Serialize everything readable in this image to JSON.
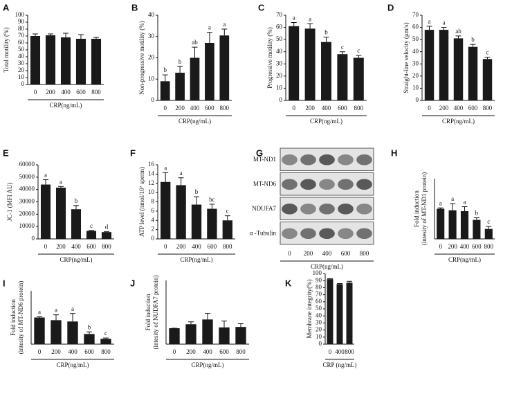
{
  "chart_data": [
    {
      "type": "bar",
      "panel": "A",
      "ylabel": [
        "Total motility (%)"
      ],
      "xlabel": "CRP(ng/mL)",
      "categories": [
        "0",
        "200",
        "400",
        "600",
        "800"
      ],
      "values": [
        70,
        71,
        68,
        66,
        66
      ],
      "errors": [
        3,
        2,
        6,
        6,
        2
      ],
      "color": "#1a1a1a",
      "ylim": [
        0,
        100
      ],
      "yticks": [
        0,
        10,
        20,
        30,
        40,
        50,
        60,
        70,
        80,
        90,
        100
      ]
    },
    {
      "type": "bar",
      "panel": "B",
      "ylabel": [
        "Non-progressive motility (%)"
      ],
      "xlabel": "CRP(ng/mL)",
      "categories": [
        "0",
        "200",
        "400",
        "600",
        "800"
      ],
      "values": [
        9,
        13,
        20,
        27,
        30.5
      ],
      "errors": [
        3,
        3,
        5,
        5,
        3
      ],
      "annotations": [
        "b",
        "b",
        "ab",
        "a",
        "a"
      ],
      "color": "#1a1a1a",
      "ylim": [
        0,
        40
      ],
      "yticks": [
        0,
        10,
        20,
        30,
        40
      ]
    },
    {
      "type": "bar",
      "panel": "C",
      "ylabel": [
        "Progressive motility (%)"
      ],
      "xlabel": "CRP(ng/mL)",
      "categories": [
        "0",
        "200",
        "400",
        "600",
        "800"
      ],
      "values": [
        61,
        59,
        48,
        38,
        35
      ],
      "errors": [
        3,
        4,
        4,
        2,
        2
      ],
      "annotations": [
        "a",
        "a",
        "b",
        "c",
        "c"
      ],
      "color": "#1a1a1a",
      "ylim": [
        0,
        70
      ],
      "yticks": [
        0,
        10,
        20,
        30,
        40,
        50,
        60,
        70
      ]
    },
    {
      "type": "bar",
      "panel": "D",
      "ylabel": [
        "Straight-line velocity (μm/s)"
      ],
      "xlabel": "CRP(ng/mL)",
      "categories": [
        "0",
        "200",
        "400",
        "600",
        "800"
      ],
      "values": [
        58,
        58,
        51,
        44,
        34
      ],
      "errors": [
        3,
        2,
        2,
        2,
        1.5
      ],
      "annotations": [
        "a",
        "a",
        "ab",
        "b",
        "c"
      ],
      "color": "#1a1a1a",
      "ylim": [
        0,
        70
      ],
      "yticks": [
        0,
        10,
        20,
        30,
        40,
        50,
        60,
        70
      ]
    },
    {
      "type": "bar",
      "panel": "E",
      "ylabel": [
        "JC-1 (MFI AU)"
      ],
      "xlabel": "CRP(ng/mL)",
      "categories": [
        "0",
        "200",
        "400",
        "600",
        "800"
      ],
      "values": [
        44000,
        41500,
        24000,
        6500,
        5500
      ],
      "errors": [
        4000,
        1000,
        3000,
        300,
        300
      ],
      "annotations": [
        "a",
        "a",
        "b",
        "c",
        "d"
      ],
      "color": "#1a1a1a",
      "ylim": [
        0,
        60000
      ],
      "yticks": [
        0,
        10000,
        20000,
        30000,
        40000,
        50000,
        60000
      ]
    },
    {
      "type": "bar",
      "panel": "F",
      "ylabel": [
        "ATP level (nmol/10⁷ sperm)"
      ],
      "xlabel": "CRP(ng/mL)",
      "categories": [
        "0",
        "200",
        "400",
        "600",
        "800"
      ],
      "values": [
        12.3,
        11.6,
        7.4,
        6.5,
        4.0
      ],
      "errors": [
        2,
        1.6,
        1.7,
        1,
        1
      ],
      "annotations": [
        "a",
        "a",
        "b",
        "bc",
        "c"
      ],
      "color": "#1a1a1a",
      "ylim": [
        0,
        16
      ],
      "yticks": [
        0,
        2,
        4,
        6,
        8,
        10,
        12,
        14,
        16
      ]
    },
    {
      "type": "blot",
      "panel": "G",
      "rows": [
        "MT-ND1",
        "MT-ND6",
        "NDUFA7",
        "α -Tubulin"
      ],
      "xlabel": "CRP(ng/mL)",
      "categories": [
        "0",
        "200",
        "400",
        "600",
        "800"
      ]
    },
    {
      "type": "bar",
      "panel": "H",
      "ylabel": [
        "Fold induction",
        "(intesity of MT-ND1 protein)"
      ],
      "xlabel": "CRP(ng/mL)",
      "categories": [
        "0",
        "200",
        "400",
        "600",
        "800"
      ],
      "values": [
        1.0,
        0.95,
        0.92,
        0.63,
        0.33
      ],
      "errors": [
        0.03,
        0.22,
        0.15,
        0.07,
        0.08
      ],
      "annotations": [
        "a",
        "a",
        "a",
        "b",
        "c"
      ],
      "color": "#1a1a1a",
      "ylim": [
        0,
        2
      ]
    },
    {
      "type": "bar",
      "panel": "I",
      "ylabel": [
        "Fold induction",
        "(intesity of MT-ND6 protein)"
      ],
      "xlabel": "CRP(ng/mL)",
      "categories": [
        "0",
        "200",
        "400",
        "600",
        "800"
      ],
      "values": [
        1.0,
        0.9,
        0.85,
        0.38,
        0.2
      ],
      "errors": [
        0.03,
        0.2,
        0.3,
        0.08,
        0.03
      ],
      "annotations": [
        "a",
        "a",
        "a",
        "b",
        "c"
      ],
      "color": "#1a1a1a",
      "ylim": [
        0,
        2
      ]
    },
    {
      "type": "bar",
      "panel": "J",
      "ylabel": [
        "Fold induction",
        "(intesity of NUDFA7 protein)"
      ],
      "xlabel": "CRP(ng/mL)",
      "categories": [
        "0",
        "200",
        "400",
        "600",
        "800"
      ],
      "values": [
        1.0,
        1.25,
        1.55,
        1.05,
        1.08
      ],
      "errors": [
        0,
        0.15,
        0.38,
        0.4,
        0.2
      ],
      "color": "#1a1a1a",
      "ylim": [
        0,
        4
      ]
    },
    {
      "type": "bar",
      "panel": "K",
      "ylabel": [
        "Membrane integrity(%)"
      ],
      "xlabel": "CRP (ng/mL)",
      "categories": [
        "0",
        "400",
        "800"
      ],
      "values": [
        92,
        85,
        87
      ],
      "errors": [
        0.8,
        0.8,
        2
      ],
      "color": "#1a1a1a",
      "ylim": [
        0,
        100
      ],
      "yticks": [
        0,
        10,
        20,
        30,
        40,
        50,
        60,
        70,
        80,
        90,
        100
      ]
    }
  ]
}
